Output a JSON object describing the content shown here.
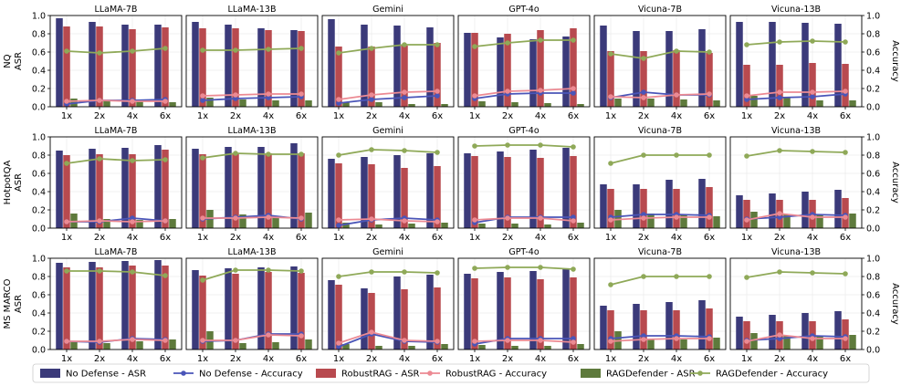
{
  "chart_data": {
    "type": "bar",
    "figure": "Grouped bar + line small multiples: ASR (left axis) and Accuracy (right axis)",
    "models": [
      "LLaMA-7B",
      "LLaMA-13B",
      "Gemini",
      "GPT-4o",
      "Vicuna-7B",
      "Vicuna-13B"
    ],
    "datasets": [
      "NQ",
      "HotpotQA",
      "MS MARCO"
    ],
    "categories": [
      "1x",
      "2x",
      "4x",
      "6x"
    ],
    "left_axis_label": "ASR",
    "right_axis_label": "Accuracy",
    "ylim": [
      0,
      1.0
    ],
    "yticks": [
      "0.0",
      "0.2",
      "0.4",
      "0.6",
      "0.8",
      "1.0"
    ],
    "series_names": {
      "nd_asr": "No Defense - ASR",
      "nd_acc": "No Defense - Accuracy",
      "rr_asr": "RobustRAG - ASR",
      "rr_acc": "RobustRAG - Accuracy",
      "rd_asr": "RAGDefender - ASR",
      "rd_acc": "RAGDefender - Accuracy"
    },
    "colors": {
      "nd_asr": "#3b3a7a",
      "nd_acc": "#4a55b8",
      "rr_asr": "#b84a4f",
      "rr_acc": "#ec8a93",
      "rd_asr": "#5e7a3c",
      "rd_acc": "#8fa958"
    },
    "panels": [
      [
        {
          "nd_asr": [
            0.97,
            0.93,
            0.9,
            0.9
          ],
          "rr_asr": [
            0.88,
            0.88,
            0.85,
            0.87
          ],
          "rd_asr": [
            0.09,
            0.07,
            0.06,
            0.05
          ],
          "nd_acc": [
            0.03,
            0.07,
            0.07,
            0.08
          ],
          "rr_acc": [
            0.06,
            0.07,
            0.06,
            0.06
          ],
          "rd_acc": [
            0.61,
            0.59,
            0.61,
            0.64
          ]
        },
        {
          "nd_asr": [
            0.93,
            0.9,
            0.86,
            0.84
          ],
          "rr_asr": [
            0.86,
            0.86,
            0.84,
            0.83
          ],
          "rd_asr": [
            0.1,
            0.08,
            0.07,
            0.07
          ],
          "nd_acc": [
            0.07,
            0.09,
            0.1,
            0.11
          ],
          "rr_acc": [
            0.12,
            0.13,
            0.14,
            0.14
          ],
          "rd_acc": [
            0.62,
            0.62,
            0.63,
            0.64
          ]
        },
        {
          "nd_asr": [
            0.96,
            0.9,
            0.89,
            0.87
          ],
          "rr_asr": [
            0.66,
            0.66,
            0.67,
            0.7
          ],
          "rd_asr": [
            0.05,
            0.05,
            0.03,
            0.03
          ],
          "nd_acc": [
            0.04,
            0.08,
            0.1,
            0.12
          ],
          "rr_acc": [
            0.08,
            0.13,
            0.16,
            0.17
          ],
          "rd_acc": [
            0.59,
            0.64,
            0.68,
            0.68
          ]
        },
        {
          "nd_asr": [
            0.81,
            0.76,
            0.74,
            0.77
          ],
          "rr_asr": [
            0.81,
            0.8,
            0.84,
            0.86
          ],
          "rd_asr": [
            0.06,
            0.05,
            0.04,
            0.03
          ],
          "nd_acc": [
            0.09,
            0.14,
            0.15,
            0.15
          ],
          "rr_acc": [
            0.12,
            0.17,
            0.18,
            0.2
          ],
          "rd_acc": [
            0.66,
            0.7,
            0.73,
            0.73
          ]
        },
        {
          "nd_asr": [
            0.89,
            0.83,
            0.83,
            0.85
          ],
          "rr_asr": [
            0.61,
            0.61,
            0.62,
            0.59
          ],
          "rd_asr": [
            0.09,
            0.09,
            0.08,
            0.07
          ],
          "nd_acc": [
            0.1,
            0.16,
            0.13,
            0.13
          ],
          "rr_acc": [
            0.11,
            0.1,
            0.13,
            0.14
          ],
          "rd_acc": [
            0.58,
            0.53,
            0.61,
            0.6
          ]
        },
        {
          "nd_asr": [
            0.93,
            0.93,
            0.92,
            0.91
          ],
          "rr_asr": [
            0.46,
            0.46,
            0.48,
            0.47
          ],
          "rd_asr": [
            0.12,
            0.1,
            0.07,
            0.07
          ],
          "nd_acc": [
            0.08,
            0.1,
            0.11,
            0.14
          ],
          "rr_acc": [
            0.12,
            0.16,
            0.16,
            0.17
          ],
          "rd_acc": [
            0.68,
            0.71,
            0.72,
            0.71
          ]
        }
      ],
      [
        {
          "nd_asr": [
            0.85,
            0.87,
            0.88,
            0.91
          ],
          "rr_asr": [
            0.8,
            0.81,
            0.81,
            0.86
          ],
          "rd_asr": [
            0.16,
            0.1,
            0.09,
            0.1
          ],
          "nd_acc": [
            0.07,
            0.07,
            0.11,
            0.08
          ],
          "rr_acc": [
            0.07,
            0.08,
            0.07,
            0.08
          ],
          "rd_acc": [
            0.71,
            0.76,
            0.74,
            0.75
          ]
        },
        {
          "nd_asr": [
            0.87,
            0.89,
            0.89,
            0.93
          ],
          "rr_asr": [
            0.81,
            0.82,
            0.82,
            0.82
          ],
          "rd_asr": [
            0.2,
            0.15,
            0.13,
            0.17
          ],
          "nd_acc": [
            0.1,
            0.12,
            0.14,
            0.1
          ],
          "rr_acc": [
            0.11,
            0.11,
            0.12,
            0.11
          ],
          "rd_acc": [
            0.77,
            0.82,
            0.81,
            0.81
          ]
        },
        {
          "nd_asr": [
            0.76,
            0.78,
            0.8,
            0.82
          ],
          "rr_asr": [
            0.71,
            0.7,
            0.66,
            0.68
          ],
          "rd_asr": [
            0.06,
            0.04,
            0.05,
            0.06
          ],
          "nd_acc": [
            0.03,
            0.09,
            0.11,
            0.09
          ],
          "rr_acc": [
            0.09,
            0.1,
            0.08,
            0.07
          ],
          "rd_acc": [
            0.8,
            0.86,
            0.85,
            0.83
          ]
        },
        {
          "nd_asr": [
            0.82,
            0.84,
            0.86,
            0.88
          ],
          "rr_asr": [
            0.79,
            0.78,
            0.77,
            0.79
          ],
          "rd_asr": [
            0.05,
            0.05,
            0.04,
            0.06
          ],
          "nd_acc": [
            0.06,
            0.12,
            0.12,
            0.12
          ],
          "rr_acc": [
            0.09,
            0.11,
            0.11,
            0.08
          ],
          "rd_acc": [
            0.9,
            0.91,
            0.91,
            0.89
          ]
        },
        {
          "nd_asr": [
            0.48,
            0.48,
            0.53,
            0.54
          ],
          "rr_asr": [
            0.43,
            0.43,
            0.43,
            0.45
          ],
          "rd_asr": [
            0.2,
            0.16,
            0.15,
            0.13
          ],
          "nd_acc": [
            0.12,
            0.15,
            0.15,
            0.14
          ],
          "rr_acc": [
            0.09,
            0.11,
            0.12,
            0.12
          ],
          "rd_acc": [
            0.71,
            0.8,
            0.8,
            0.8
          ]
        },
        {
          "nd_asr": [
            0.36,
            0.38,
            0.4,
            0.42
          ],
          "rr_asr": [
            0.31,
            0.31,
            0.31,
            0.33
          ],
          "rd_asr": [
            0.18,
            0.15,
            0.15,
            0.16
          ],
          "nd_acc": [
            0.1,
            0.12,
            0.15,
            0.14
          ],
          "rr_acc": [
            0.09,
            0.16,
            0.12,
            0.12
          ],
          "rd_acc": [
            0.79,
            0.85,
            0.84,
            0.83
          ]
        }
      ],
      [
        {
          "nd_asr": [
            0.95,
            0.96,
            0.97,
            0.98
          ],
          "rr_asr": [
            0.9,
            0.9,
            0.92,
            0.92
          ],
          "rd_asr": [
            0.09,
            0.07,
            0.09,
            0.11
          ],
          "nd_acc": [
            0.09,
            0.08,
            0.12,
            0.11
          ],
          "rr_acc": [
            0.09,
            0.09,
            0.11,
            0.1
          ],
          "rd_acc": [
            0.86,
            0.86,
            0.85,
            0.81
          ]
        },
        {
          "nd_asr": [
            0.87,
            0.89,
            0.9,
            0.91
          ],
          "rr_asr": [
            0.81,
            0.83,
            0.85,
            0.84
          ],
          "rd_asr": [
            0.2,
            0.07,
            0.08,
            0.11
          ],
          "nd_acc": [
            0.09,
            0.1,
            0.17,
            0.17
          ],
          "rr_acc": [
            0.1,
            0.1,
            0.16,
            0.15
          ],
          "rd_acc": [
            0.76,
            0.87,
            0.87,
            0.86
          ]
        },
        {
          "nd_asr": [
            0.76,
            0.67,
            0.8,
            0.82
          ],
          "rr_asr": [
            0.71,
            0.62,
            0.66,
            0.68
          ],
          "rd_asr": [
            0.06,
            0.04,
            0.04,
            0.06
          ],
          "nd_acc": [
            0.03,
            0.17,
            0.09,
            0.08
          ],
          "rr_acc": [
            0.07,
            0.19,
            0.1,
            0.09
          ],
          "rd_acc": [
            0.8,
            0.85,
            0.85,
            0.84
          ]
        },
        {
          "nd_asr": [
            0.83,
            0.85,
            0.86,
            0.88
          ],
          "rr_asr": [
            0.78,
            0.79,
            0.77,
            0.79
          ],
          "rd_asr": [
            0.05,
            0.04,
            0.04,
            0.06
          ],
          "nd_acc": [
            0.06,
            0.12,
            0.12,
            0.12
          ],
          "rr_acc": [
            0.09,
            0.1,
            0.1,
            0.08
          ],
          "rd_acc": [
            0.89,
            0.9,
            0.9,
            0.88
          ]
        },
        {
          "nd_asr": [
            0.48,
            0.5,
            0.52,
            0.54
          ],
          "rr_asr": [
            0.43,
            0.43,
            0.43,
            0.45
          ],
          "rd_asr": [
            0.2,
            0.12,
            0.11,
            0.13
          ],
          "nd_acc": [
            0.12,
            0.15,
            0.15,
            0.14
          ],
          "rr_acc": [
            0.09,
            0.11,
            0.12,
            0.12
          ],
          "rd_acc": [
            0.71,
            0.8,
            0.8,
            0.8
          ]
        },
        {
          "nd_asr": [
            0.36,
            0.38,
            0.4,
            0.42
          ],
          "rr_asr": [
            0.31,
            0.31,
            0.31,
            0.33
          ],
          "rd_asr": [
            0.18,
            0.15,
            0.15,
            0.16
          ],
          "nd_acc": [
            0.1,
            0.12,
            0.15,
            0.14
          ],
          "rr_acc": [
            0.09,
            0.16,
            0.12,
            0.12
          ],
          "rd_acc": [
            0.79,
            0.85,
            0.84,
            0.83
          ]
        }
      ]
    ]
  }
}
